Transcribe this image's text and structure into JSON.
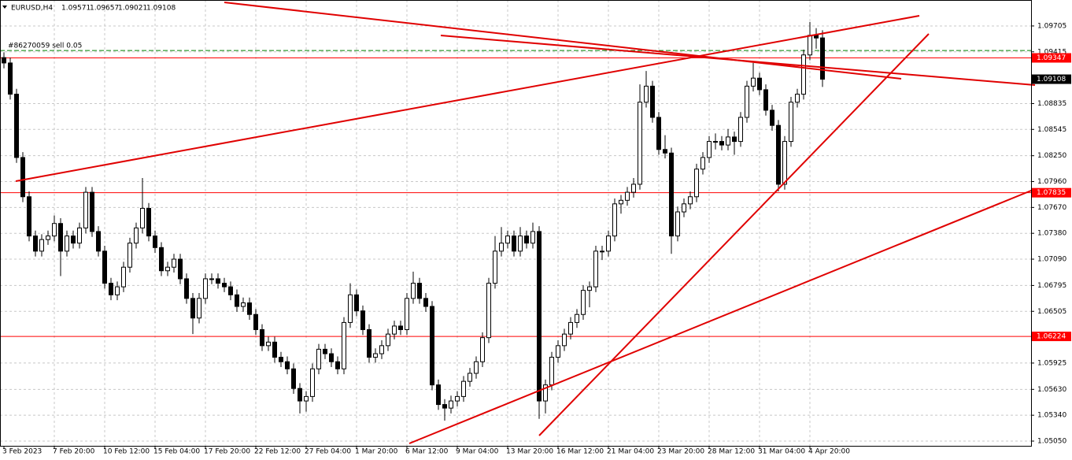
{
  "chart_data": {
    "type": "candlestick",
    "series": [
      {
        "name": "EURUSD,H4",
        "up_color": "#ffffff",
        "down_color": "#000000",
        "open": [
          1.0935,
          1.0929,
          1.0894,
          1.0823,
          1.0779,
          1.0735,
          1.0718,
          1.0731,
          1.0735,
          1.0749,
          1.0718,
          1.0735,
          1.0727,
          1.0744,
          1.0784,
          1.074,
          1.0718,
          1.0682,
          1.0669,
          1.0678,
          1.07,
          1.0727,
          1.0744,
          1.0766,
          1.0735,
          1.0722,
          1.0696,
          1.07,
          1.0709,
          1.0687,
          1.0665,
          1.0643,
          1.0665,
          1.0687,
          1.0687,
          1.0682,
          1.0678,
          1.0669,
          1.0656,
          1.066,
          1.0647,
          1.063,
          1.0612,
          1.0616,
          1.0599,
          1.0594,
          1.0586,
          1.0564,
          1.055,
          1.0555,
          1.0586,
          1.0608,
          1.0603,
          1.0594,
          1.0586,
          1.0638,
          1.0669,
          1.0651,
          1.063,
          1.0599,
          1.0603,
          1.0612,
          1.0625,
          1.0634,
          1.063,
          1.0665,
          1.0682,
          1.0665,
          1.0656,
          1.0568,
          1.0546,
          1.0542,
          1.055,
          1.0555,
          1.0572,
          1.0581,
          1.0594,
          1.0621,
          1.0682,
          1.0718,
          1.0727,
          1.0735,
          1.0718,
          1.0735,
          1.0727,
          1.074,
          1.055,
          1.0568,
          1.0599,
          1.0612,
          1.0625,
          1.0638,
          1.0647,
          1.0674,
          1.0678,
          1.0718,
          1.0718,
          1.0735,
          1.0771,
          1.0775,
          1.0784,
          1.0793,
          1.0885,
          1.0903,
          1.0868,
          1.0832,
          1.0828,
          1.0735,
          1.0762,
          1.0771,
          1.0779,
          1.081,
          1.0823,
          1.0841,
          1.0841,
          1.0837,
          1.0846,
          1.0841,
          1.0868,
          1.0903,
          1.0912,
          1.0899,
          1.0876,
          1.0859,
          1.0793,
          1.0841,
          1.0885,
          1.0894,
          1.0938,
          1.096,
          1.09571
        ],
        "high": [
          1.0941,
          1.0935,
          1.09,
          1.0829,
          1.0785,
          1.0741,
          1.0737,
          1.0741,
          1.0758,
          1.0755,
          1.0741,
          1.0741,
          1.075,
          1.079,
          1.079,
          1.0746,
          1.0724,
          1.0688,
          1.0684,
          1.0706,
          1.0733,
          1.075,
          1.08,
          1.0772,
          1.0741,
          1.0728,
          1.0706,
          1.0715,
          1.0715,
          1.0693,
          1.0671,
          1.0671,
          1.0693,
          1.0693,
          1.0693,
          1.0688,
          1.0684,
          1.0675,
          1.0666,
          1.0666,
          1.0653,
          1.0636,
          1.0622,
          1.0622,
          1.0605,
          1.06,
          1.0592,
          1.057,
          1.0561,
          1.0592,
          1.0614,
          1.0614,
          1.0609,
          1.06,
          1.0644,
          1.0682,
          1.0675,
          1.0657,
          1.0636,
          1.0609,
          1.0618,
          1.0631,
          1.064,
          1.064,
          1.0671,
          1.0695,
          1.0688,
          1.0671,
          1.0662,
          1.0574,
          1.0552,
          1.0556,
          1.0561,
          1.0578,
          1.0587,
          1.06,
          1.0627,
          1.0688,
          1.0735,
          1.0745,
          1.0741,
          1.0741,
          1.0745,
          1.0741,
          1.075,
          1.0746,
          1.0574,
          1.0605,
          1.0618,
          1.0631,
          1.0644,
          1.0653,
          1.068,
          1.0684,
          1.0724,
          1.0724,
          1.0741,
          1.0777,
          1.0781,
          1.079,
          1.08,
          1.0905,
          1.092,
          1.0909,
          1.0874,
          1.0848,
          1.0834,
          1.0768,
          1.0777,
          1.0785,
          1.0816,
          1.0829,
          1.0847,
          1.085,
          1.0847,
          1.0855,
          1.0852,
          1.0874,
          1.0909,
          1.0929,
          1.0918,
          1.0905,
          1.0882,
          1.0865,
          1.0847,
          1.0891,
          1.09,
          1.0944,
          1.0975,
          1.0968,
          1.09657
        ],
        "low": [
          1.0923,
          1.0888,
          1.0817,
          1.0773,
          1.0729,
          1.0712,
          1.0712,
          1.0725,
          1.0729,
          1.069,
          1.0712,
          1.0721,
          1.0721,
          1.0738,
          1.0734,
          1.0712,
          1.0676,
          1.0663,
          1.0663,
          1.0672,
          1.0694,
          1.0721,
          1.0738,
          1.0729,
          1.0716,
          1.069,
          1.069,
          1.0694,
          1.0681,
          1.0659,
          1.0625,
          1.0637,
          1.0659,
          1.0681,
          1.0676,
          1.0672,
          1.0663,
          1.065,
          1.065,
          1.0641,
          1.0624,
          1.0606,
          1.0606,
          1.0593,
          1.0588,
          1.058,
          1.0558,
          1.0536,
          1.0538,
          1.0549,
          1.058,
          1.0597,
          1.0588,
          1.058,
          1.058,
          1.0632,
          1.0645,
          1.0624,
          1.0593,
          1.0593,
          1.0597,
          1.0606,
          1.0619,
          1.0624,
          1.0624,
          1.0659,
          1.0659,
          1.065,
          1.0562,
          1.054,
          1.0528,
          1.0536,
          1.0544,
          1.0549,
          1.0566,
          1.0575,
          1.0588,
          1.0615,
          1.0676,
          1.0712,
          1.0721,
          1.0712,
          1.0712,
          1.0721,
          1.0721,
          1.053,
          1.0536,
          1.0562,
          1.0593,
          1.0606,
          1.0619,
          1.0632,
          1.0641,
          1.0655,
          1.0672,
          1.0708,
          1.0712,
          1.0729,
          1.076,
          1.0769,
          1.0778,
          1.0787,
          1.0879,
          1.0862,
          1.0826,
          1.0822,
          1.0715,
          1.0729,
          1.0756,
          1.0765,
          1.0773,
          1.0804,
          1.0817,
          1.0832,
          1.0831,
          1.0831,
          1.0826,
          1.0835,
          1.0862,
          1.0897,
          1.0893,
          1.087,
          1.0853,
          1.0785,
          1.0787,
          1.0835,
          1.0879,
          1.0888,
          1.0932,
          1.0945,
          1.09021
        ],
        "close": [
          1.0929,
          1.0894,
          1.0823,
          1.0779,
          1.0735,
          1.0718,
          1.0731,
          1.0735,
          1.0749,
          1.0718,
          1.0735,
          1.0727,
          1.0744,
          1.0784,
          1.074,
          1.0718,
          1.0682,
          1.0669,
          1.0678,
          1.07,
          1.0727,
          1.0744,
          1.0766,
          1.0735,
          1.0722,
          1.0696,
          1.07,
          1.0709,
          1.0687,
          1.0665,
          1.0643,
          1.0665,
          1.0687,
          1.0687,
          1.0682,
          1.0678,
          1.0669,
          1.0656,
          1.066,
          1.0647,
          1.063,
          1.0612,
          1.0616,
          1.0599,
          1.0594,
          1.0586,
          1.0564,
          1.055,
          1.0555,
          1.0586,
          1.0608,
          1.0603,
          1.0594,
          1.0586,
          1.0638,
          1.0669,
          1.0651,
          1.063,
          1.0599,
          1.0603,
          1.0612,
          1.0625,
          1.0634,
          1.063,
          1.0665,
          1.0682,
          1.0665,
          1.0656,
          1.0568,
          1.0546,
          1.0542,
          1.055,
          1.0555,
          1.0572,
          1.0581,
          1.0594,
          1.0621,
          1.0682,
          1.0718,
          1.0727,
          1.0735,
          1.0718,
          1.0735,
          1.0727,
          1.074,
          1.055,
          1.0568,
          1.0599,
          1.0612,
          1.0625,
          1.0638,
          1.0647,
          1.0674,
          1.0678,
          1.0718,
          1.0718,
          1.0735,
          1.0771,
          1.0775,
          1.0784,
          1.0793,
          1.0885,
          1.0903,
          1.0868,
          1.0832,
          1.0828,
          1.0735,
          1.0762,
          1.0771,
          1.0779,
          1.081,
          1.0823,
          1.0841,
          1.0841,
          1.0837,
          1.0846,
          1.0841,
          1.0868,
          1.0903,
          1.0912,
          1.0899,
          1.0876,
          1.0859,
          1.0793,
          1.0841,
          1.0885,
          1.0894,
          1.0938,
          1.096,
          1.0957,
          1.09108
        ]
      }
    ],
    "categories": [
      "3 Feb 2023",
      null,
      null,
      null,
      null,
      null,
      null,
      null,
      "7 Feb 20:00",
      null,
      null,
      null,
      null,
      null,
      null,
      null,
      "10 Feb 12:00",
      null,
      null,
      null,
      null,
      null,
      null,
      null,
      "15 Feb 04:00",
      null,
      null,
      null,
      null,
      null,
      null,
      null,
      "17 Feb 20:00",
      null,
      null,
      null,
      null,
      null,
      null,
      null,
      "22 Feb 12:00",
      null,
      null,
      null,
      null,
      null,
      null,
      null,
      "27 Feb 04:00",
      null,
      null,
      null,
      null,
      null,
      null,
      null,
      "1 Mar 20:00",
      null,
      null,
      null,
      null,
      null,
      null,
      null,
      "6 Mar 12:00",
      null,
      null,
      null,
      null,
      null,
      null,
      null,
      "9 Mar 04:00",
      null,
      null,
      null,
      null,
      null,
      null,
      null,
      "13 Mar 20:00",
      null,
      null,
      null,
      null,
      null,
      null,
      null,
      "16 Mar 12:00",
      null,
      null,
      null,
      null,
      null,
      null,
      null,
      "21 Mar 04:00",
      null,
      null,
      null,
      null,
      null,
      null,
      null,
      "23 Mar 20:00",
      null,
      null,
      null,
      null,
      null,
      null,
      null,
      "28 Mar 12:00",
      null,
      null,
      null,
      null,
      null,
      null,
      null,
      "31 Mar 04:00",
      null,
      null,
      null,
      null,
      null,
      null,
      null,
      "4 Apr 20:00",
      null,
      null
    ],
    "ylim": [
      1.04997,
      1.09996
    ],
    "yticks": [
      1.09705,
      1.09415,
      1.08835,
      1.08545,
      {
        "value": 1.0825,
        "label": "1.08250"
      },
      {
        "value": 1.0796,
        "label": "1.07960"
      },
      {
        "value": 1.0767,
        "label": "1.07670"
      },
      {
        "value": 1.0738,
        "label": "1.07380"
      },
      {
        "value": 1.0709,
        "label": "1.07090"
      },
      1.06795,
      1.06505,
      1.05925,
      {
        "value": 1.0563,
        "label": "1.05630"
      },
      {
        "value": 1.0534,
        "label": "1.05340"
      },
      {
        "value": 1.0505,
        "label": "1.05050"
      }
    ],
    "grid": true,
    "hlines": [
      {
        "value": 1.09347,
        "color": "#ff0000"
      },
      {
        "value": 1.07835,
        "color": "#ff0000"
      },
      {
        "value": 1.06224,
        "color": "#ff0000"
      }
    ],
    "order": {
      "label": "#86270059 sell 0.05",
      "value": 1.0943,
      "color": "#008000"
    }
  }
}
